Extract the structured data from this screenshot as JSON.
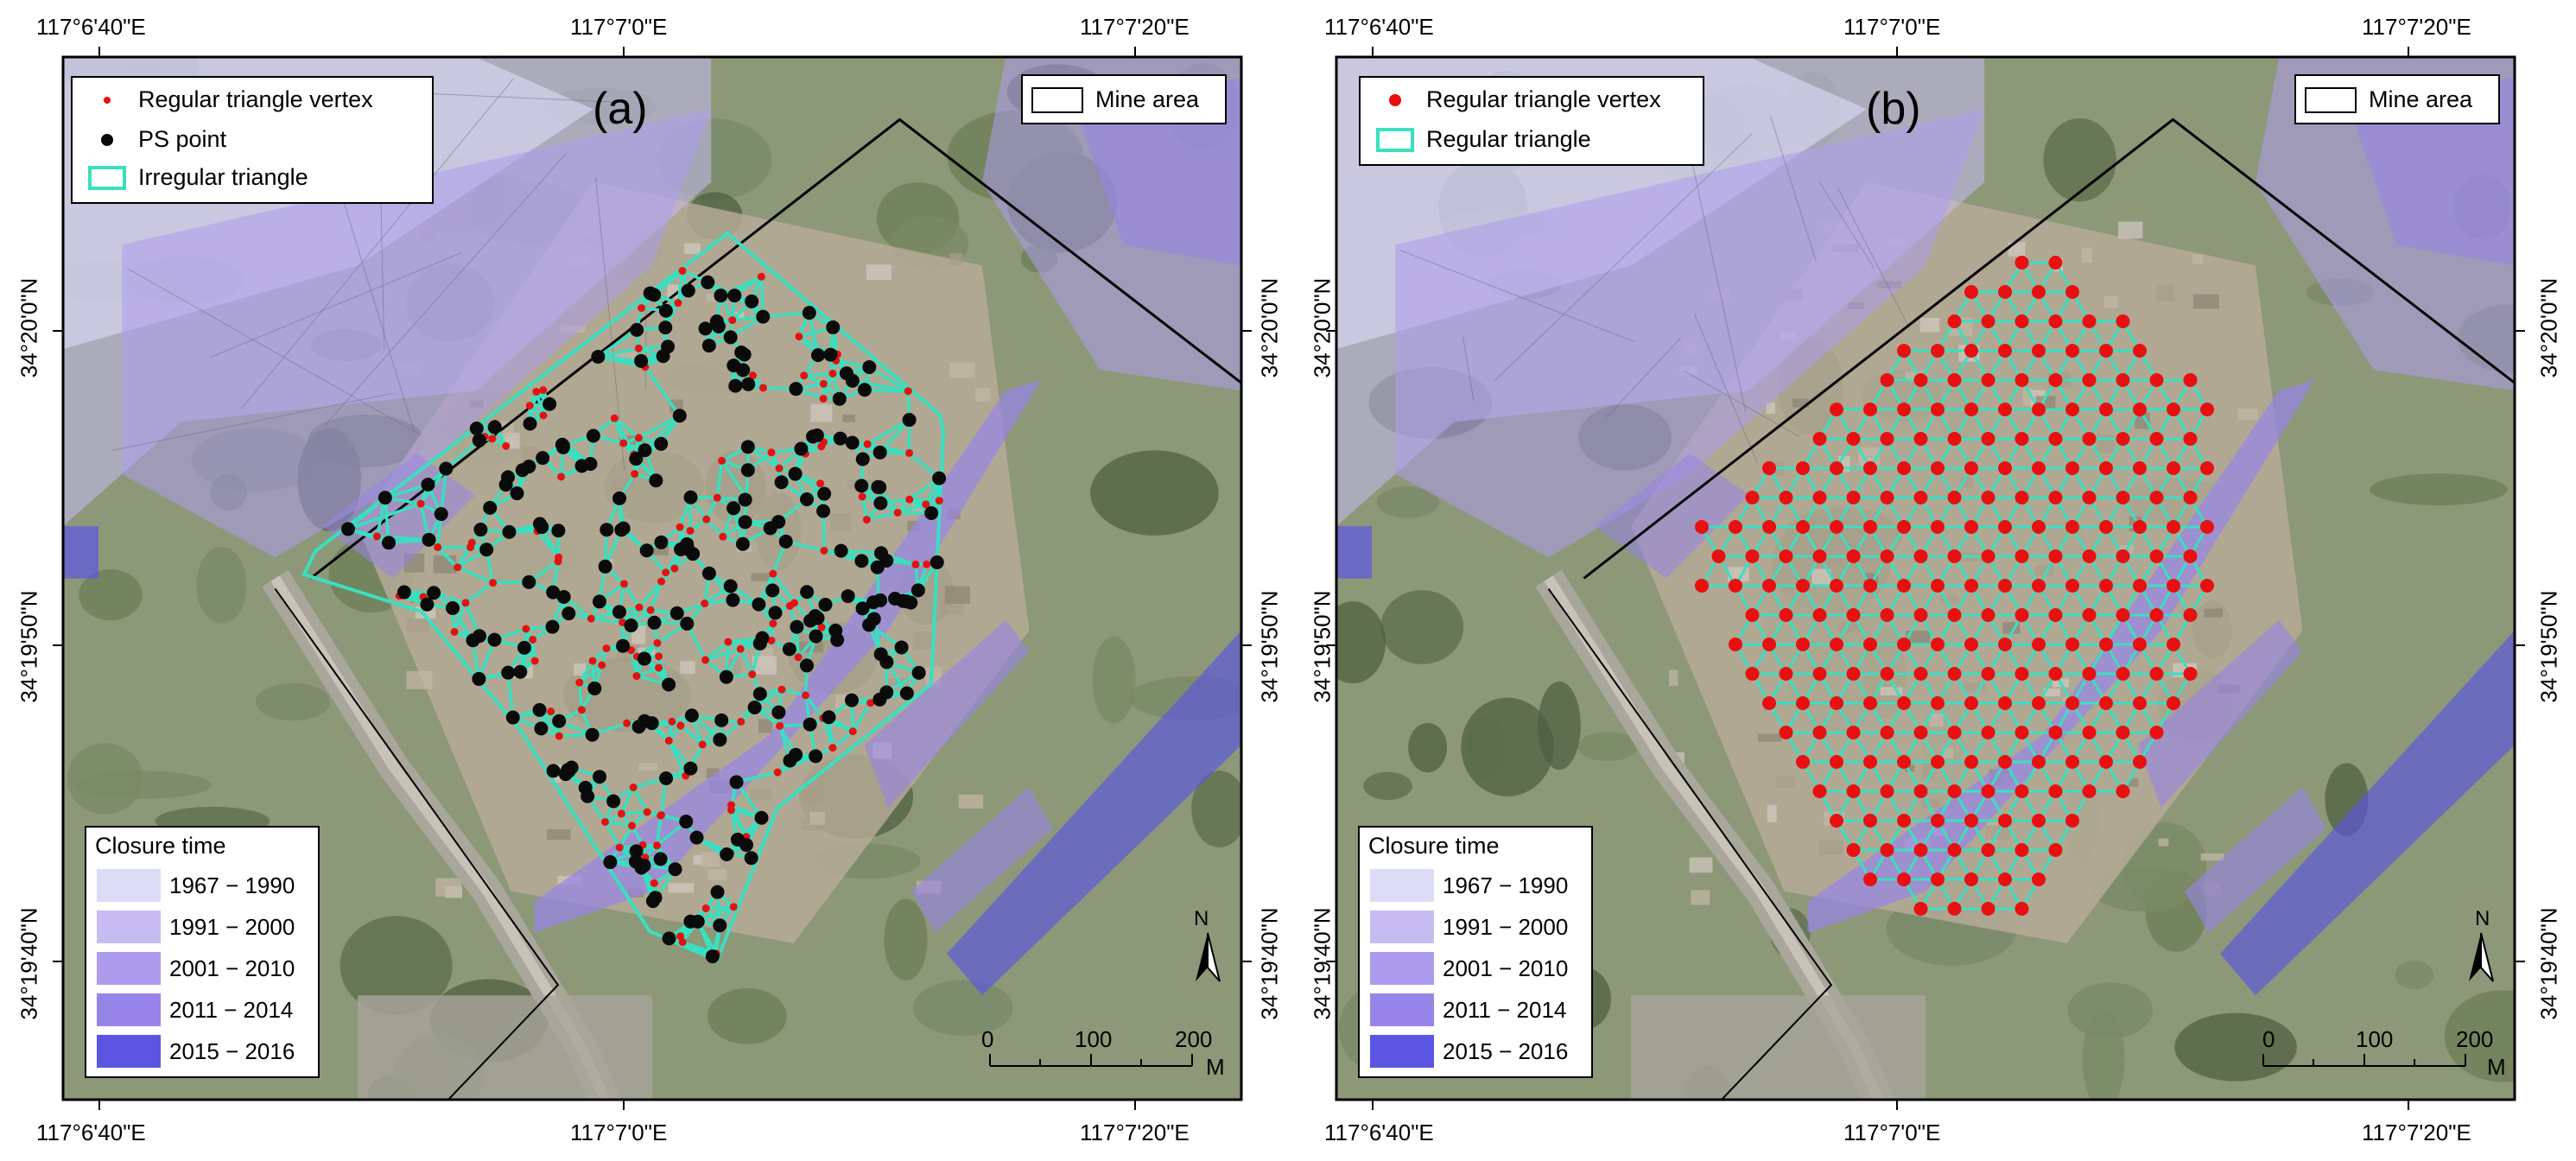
{
  "colors": {
    "triangle": "#38e0c0",
    "vertex": "#e81010",
    "ps_point": "#0a0a0a",
    "mine_boundary": "#000000",
    "closure_1967_1990": "#dcdcf6",
    "closure_1991_2000": "#c7bcf2",
    "closure_2001_2010": "#ad9ced",
    "closure_2011_2014": "#9784e8",
    "closure_2015_2016": "#5b55e2"
  },
  "axes": {
    "lon_labels": [
      "117°6'40\"E",
      "117°7'0\"E",
      "117°7'20\"E"
    ],
    "lat_labels": [
      "34°20'0\"N",
      "34°19'50\"N",
      "34°19'40\"N"
    ]
  },
  "panels": [
    {
      "label": "(a)",
      "legend": [
        {
          "icon": "small-red-dot-icon",
          "text": "Regular triangle vertex"
        },
        {
          "icon": "black-dot-icon",
          "text": "PS point"
        },
        {
          "icon": "irregular-triangle-swatch-icon",
          "text": "Irregular triangle"
        }
      ],
      "mine_area_label": "Mine area"
    },
    {
      "label": "(b)",
      "legend": [
        {
          "icon": "red-dot-icon",
          "text": "Regular triangle vertex"
        },
        {
          "icon": "regular-triangle-swatch-icon",
          "text": "Regular triangle"
        }
      ],
      "mine_area_label": "Mine area"
    }
  ],
  "closure_legend": {
    "title": "Closure time",
    "items": [
      "1967 − 1990",
      "1991 − 2000",
      "2001 − 2010",
      "2011 − 2014",
      "2015 − 2016"
    ]
  },
  "scale_bar": {
    "ticks": [
      "0",
      "100",
      "200"
    ],
    "unit": "M"
  },
  "north_arrow": {
    "label": "N"
  }
}
